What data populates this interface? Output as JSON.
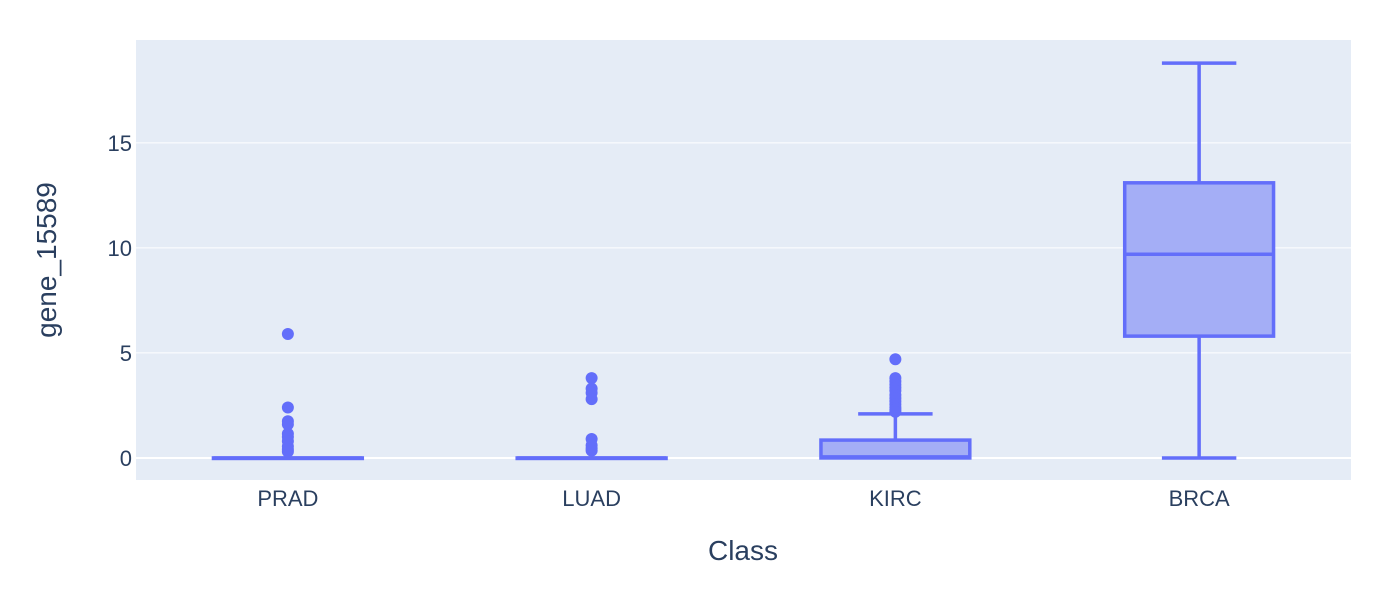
{
  "chart_data": {
    "type": "box",
    "xlabel": "Class",
    "ylabel": "gene_15589",
    "categories": [
      "PRAD",
      "LUAD",
      "KIRC",
      "BRCA"
    ],
    "ylim": [
      -1.05,
      19.9
    ],
    "yticks": [
      0,
      5,
      10,
      15
    ],
    "grid": true,
    "colors": {
      "plot_bg": "#e5ecf6",
      "grid": "#ffffff",
      "box_line": "#636efa",
      "box_fill": "#a4aef6",
      "text": "#2a3f5f"
    },
    "boxes": [
      {
        "category": "PRAD",
        "min": 0,
        "q1": 0,
        "median": 0,
        "q3": 0,
        "max": 0,
        "outliers": [
          5.9,
          2.4,
          1.75,
          1.6,
          1.15,
          1.0,
          0.8,
          0.55,
          0.4,
          0.3
        ]
      },
      {
        "category": "LUAD",
        "min": 0,
        "q1": 0,
        "median": 0,
        "q3": 0,
        "max": 0,
        "outliers": [
          3.8,
          3.3,
          3.1,
          2.8,
          0.9,
          0.6,
          0.45,
          0.35
        ]
      },
      {
        "category": "KIRC",
        "min": 0,
        "q1": 0,
        "median": 0.05,
        "q3": 0.85,
        "max": 2.1,
        "outliers": [
          4.7,
          3.8,
          3.65,
          3.5,
          3.35,
          3.2,
          3.0,
          2.85,
          2.7,
          2.55,
          2.4,
          2.3,
          2.2
        ]
      },
      {
        "category": "BRCA",
        "min": 0,
        "q1": 5.8,
        "median": 9.7,
        "q3": 13.1,
        "max": 18.8,
        "outliers": []
      }
    ]
  }
}
